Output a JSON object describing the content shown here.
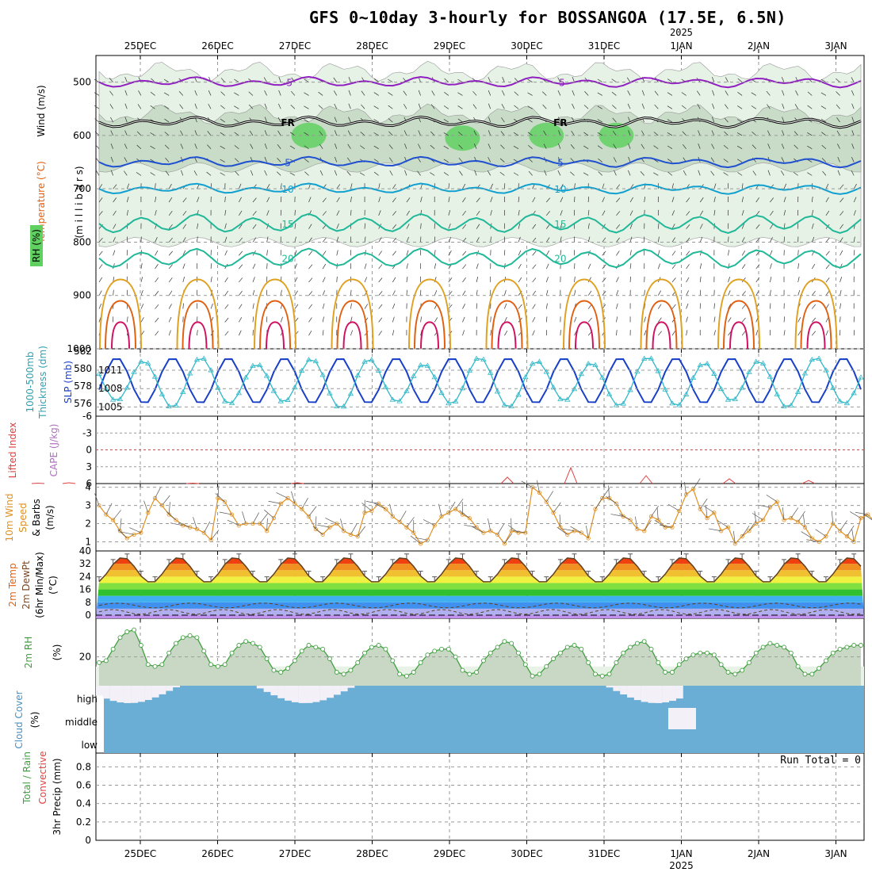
{
  "title": "GFS 0~10day 3-hourly for BOSSANGOA (17.5E, 6.5N)",
  "year_label": "2025",
  "dates": [
    "25DEC",
    "26DEC",
    "27DEC",
    "28DEC",
    "29DEC",
    "30DEC",
    "31DEC",
    "1JAN",
    "2JAN",
    "3JAN"
  ],
  "run_total": "Run Total = 0",
  "colors": {
    "temp_purple": "#9020c0",
    "temp_blue": "#2050d0",
    "temp_cyan": "#10a0d0",
    "temp_teal": "#20b898",
    "temp_orange": "#e0a020",
    "temp_dorange": "#e06010",
    "temp_red": "#d01060",
    "freeze": "#000000",
    "rh_light": "#e6f2e6",
    "rh_mid": "#c8dcc8",
    "rh_green": "#60d060",
    "slp": "#1840c8",
    "thick": "#30b8c8",
    "wind10": "#e09020",
    "rh2m": "#40a040",
    "cloud": "#6aaed6",
    "cloud_gap": "#f4f0f8",
    "li": "#e04040"
  },
  "chart_data": [
    {
      "type": "line",
      "name": "upper-air cross section",
      "ylabel_left": [
        "Wind (m/s)",
        "Temperature (°C)",
        "RH (%)"
      ],
      "ylabel": "(m i l l i b a r s)",
      "ylim": [
        1000,
        450
      ],
      "yticks": [
        500,
        600,
        700,
        800,
        900,
        1000
      ],
      "isotherms": [
        {
          "value": -5,
          "label": "-5",
          "mean_p": 500
        },
        {
          "value": 0,
          "label": "FR",
          "mean_p": 575
        },
        {
          "value": 5,
          "label": "5",
          "mean_p": 650
        },
        {
          "value": 10,
          "label": "10",
          "mean_p": 700
        },
        {
          "value": 15,
          "label": "15",
          "mean_p": 765
        },
        {
          "value": 20,
          "label": "20",
          "mean_p": 830
        }
      ],
      "rh_labels": [
        "10",
        "30",
        "50"
      ]
    },
    {
      "type": "line",
      "name": "SLP and thickness",
      "ylabel_left": [
        "1000-500mb",
        "Thickness (dm)"
      ],
      "ylabel_right": "SLP (mb)",
      "yticks_left": [
        576,
        578,
        580,
        582
      ],
      "yticks_right": [
        1005,
        1008,
        1011
      ],
      "ylim_right": [
        1003.5,
        1014.5
      ]
    },
    {
      "type": "line",
      "name": "CAPE and Lifted Index",
      "ylabel_left": [
        "Lifted Index",
        "CAPE (J/kg)"
      ],
      "yticks": [
        "-6",
        "-3",
        "0",
        "3",
        "6"
      ],
      "ylim": [
        -6,
        6
      ]
    },
    {
      "type": "line",
      "name": "10m wind",
      "ylabel_left": [
        "10m Wind",
        "Speed",
        "& Barbs",
        "(m/s)"
      ],
      "yticks": [
        1,
        2,
        3,
        4
      ],
      "ylim": [
        0.5,
        4.2
      ],
      "values": [
        3.0,
        2.5,
        2.2,
        1.6,
        1.2,
        1.4,
        1.5,
        2.6,
        3.4,
        3.0,
        2.5,
        2.2,
        1.9,
        1.8,
        1.7,
        1.5,
        1.1,
        3.4,
        3.2,
        2.5,
        1.9,
        2.0,
        2.0,
        2.0,
        1.6,
        2.3,
        3.1,
        3.4,
        3.1,
        2.8,
        2.4,
        1.7,
        1.4,
        1.8,
        2.0,
        1.6,
        1.4,
        1.3,
        2.6,
        2.7,
        3.1,
        2.8,
        2.4,
        2.1,
        1.8,
        1.5,
        0.9,
        1.1,
        1.9,
        2.4,
        2.6,
        2.8,
        2.5,
        2.3,
        1.8,
        1.5,
        1.6,
        1.4,
        0.9,
        1.6,
        1.5,
        1.5,
        4.0,
        3.7,
        3.2,
        2.6,
        1.8,
        1.4,
        1.6,
        1.5,
        1.2,
        2.8,
        3.4,
        3.4,
        3.1,
        2.4,
        2.2,
        1.7,
        1.6,
        2.4,
        2.2,
        1.8,
        1.8,
        2.7,
        3.6,
        3.9,
        2.8,
        2.3,
        2.6,
        1.6,
        1.8,
        0.9,
        1.3,
        1.6,
        2.0,
        2.2,
        2.9,
        3.2,
        2.2,
        2.3,
        2.1,
        1.8,
        1.2,
        1.0,
        1.3,
        2.0,
        1.6,
        1.3,
        1.0,
        2.3,
        2.5,
        2.1
      ]
    },
    {
      "type": "area",
      "name": "2m temperature",
      "ylabel_left": [
        "2m Temp",
        "2m DewPt",
        "(6hr Min/Max)",
        "(°C)"
      ],
      "yticks": [
        0,
        8,
        16,
        24,
        32,
        40
      ],
      "ylim": [
        -2,
        40
      ],
      "temp_min": 20,
      "temp_max": 36,
      "dewpoint": 2
    },
    {
      "type": "area",
      "name": "2m RH",
      "ylabel_left": [
        "2m RH",
        "(%)"
      ],
      "yticks": [
        20
      ],
      "ylim": [
        5,
        40
      ],
      "values": [
        17,
        18,
        24,
        30,
        33,
        34,
        26,
        16,
        15,
        16,
        22,
        27,
        30,
        31,
        30,
        23,
        16,
        15,
        16,
        22,
        26,
        28,
        27,
        25,
        19,
        13,
        12,
        14,
        18,
        23,
        26,
        25,
        24,
        19,
        12,
        11,
        13,
        17,
        22,
        25,
        26,
        24,
        18,
        11,
        10,
        12,
        17,
        21,
        23,
        24,
        24,
        20,
        13,
        11,
        12,
        18,
        22,
        25,
        28,
        27,
        22,
        16,
        10,
        11,
        15,
        19,
        22,
        25,
        26,
        24,
        17,
        11,
        10,
        11,
        17,
        22,
        25,
        27,
        28,
        24,
        17,
        12,
        12,
        16,
        19,
        21,
        22,
        22,
        21,
        16,
        12,
        11,
        13,
        17,
        22,
        25,
        27,
        26,
        25,
        22,
        15,
        11,
        11,
        14,
        18,
        22,
        24,
        25,
        26,
        26
      ]
    },
    {
      "type": "bar",
      "name": "cloud cover",
      "ylabel_left": [
        "Cloud Cover",
        "(%)"
      ],
      "levels": [
        "high",
        "middle",
        "low"
      ]
    },
    {
      "type": "bar",
      "name": "3hr precip",
      "ylabel_left": [
        "Total / Rain",
        "Convective",
        "3hr Precip (mm)"
      ],
      "yticks": [
        "0",
        "0.2",
        "0.4",
        "0.6",
        "0.8"
      ],
      "ylim": [
        0,
        0.95
      ],
      "values": []
    }
  ]
}
